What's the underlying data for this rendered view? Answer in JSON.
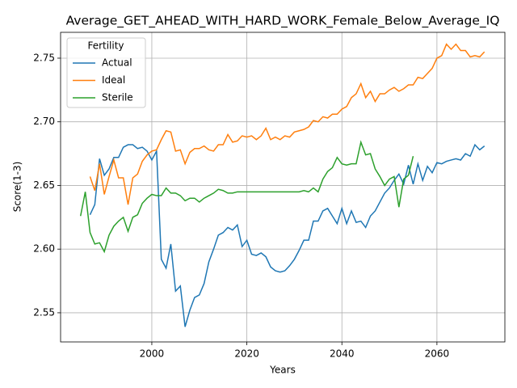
{
  "chart_data": {
    "type": "line",
    "title": "Average_GET_AHEAD_WITH_HARD_WORK_Female_Below_Average_IQ",
    "x_label": "Years",
    "y_label": "Score(1-3)",
    "x": [
      1985,
      1986,
      1987,
      1988,
      1989,
      1990,
      1991,
      1992,
      1993,
      1994,
      1995,
      1996,
      1997,
      1998,
      1999,
      2000,
      2001,
      2002,
      2003,
      2004,
      2005,
      2006,
      2007,
      2008,
      2009,
      2010,
      2011,
      2012,
      2013,
      2014,
      2015,
      2016,
      2017,
      2018,
      2019,
      2020,
      2021,
      2022,
      2023,
      2024,
      2025,
      2026,
      2027,
      2028,
      2029,
      2030,
      2031,
      2032,
      2033,
      2034,
      2035,
      2036,
      2037,
      2038,
      2039,
      2040,
      2041,
      2042,
      2043,
      2044,
      2045,
      2046,
      2047,
      2048,
      2049,
      2050,
      2051,
      2052,
      2053,
      2054,
      2055,
      2056,
      2057,
      2058,
      2059,
      2060,
      2061,
      2062,
      2063,
      2064,
      2065,
      2066,
      2067,
      2068,
      2069,
      2070
    ],
    "series": [
      {
        "name": "Actual",
        "color": "#1f77b4",
        "values": [
          null,
          null,
          2.627,
          2.635,
          2.671,
          2.658,
          2.663,
          2.672,
          2.672,
          2.68,
          2.682,
          2.682,
          2.679,
          2.68,
          2.677,
          2.67,
          2.677,
          2.592,
          2.585,
          2.604,
          2.567,
          2.571,
          2.539,
          2.552,
          2.562,
          2.564,
          2.573,
          2.59,
          2.6,
          2.611,
          2.613,
          2.617,
          2.615,
          2.619,
          2.602,
          2.607,
          2.596,
          2.595,
          2.597,
          2.594,
          2.586,
          2.583,
          2.582,
          2.583,
          2.587,
          2.592,
          2.599,
          2.607,
          2.607,
          2.622,
          2.622,
          2.63,
          2.632,
          2.626,
          2.62,
          2.632,
          2.62,
          2.63,
          2.621,
          2.622,
          2.617,
          2.626,
          2.63,
          2.637,
          2.644,
          2.648,
          2.654,
          2.659,
          2.651,
          2.666,
          2.651,
          2.667,
          2.654,
          2.665,
          2.66,
          2.668,
          2.667,
          2.669,
          2.67,
          2.671,
          2.67,
          2.675,
          2.673,
          2.682,
          2.678,
          2.681
        ]
      },
      {
        "name": "Ideal",
        "color": "#ff7f0e",
        "values": [
          null,
          null,
          2.657,
          2.646,
          2.667,
          2.643,
          2.657,
          2.67,
          2.656,
          2.656,
          2.635,
          2.656,
          2.659,
          2.669,
          2.674,
          2.677,
          2.678,
          2.686,
          2.693,
          2.692,
          2.677,
          2.678,
          2.667,
          2.676,
          2.679,
          2.679,
          2.681,
          2.678,
          2.677,
          2.682,
          2.682,
          2.69,
          2.684,
          2.685,
          2.689,
          2.688,
          2.689,
          2.686,
          2.689,
          2.695,
          2.686,
          2.688,
          2.686,
          2.689,
          2.688,
          2.692,
          2.693,
          2.694,
          2.696,
          2.701,
          2.7,
          2.704,
          2.703,
          2.706,
          2.706,
          2.71,
          2.712,
          2.719,
          2.722,
          2.73,
          2.719,
          2.724,
          2.716,
          2.722,
          2.722,
          2.725,
          2.727,
          2.724,
          2.726,
          2.729,
          2.729,
          2.735,
          2.734,
          2.738,
          2.742,
          2.75,
          2.752,
          2.761,
          2.757,
          2.761,
          2.756,
          2.756,
          2.751,
          2.752,
          2.751,
          2.755
        ]
      },
      {
        "name": "Sterile",
        "color": "#2ca02c",
        "values": [
          2.626,
          2.645,
          2.613,
          2.604,
          2.605,
          2.598,
          2.611,
          2.618,
          2.622,
          2.625,
          2.614,
          2.625,
          2.627,
          2.636,
          2.64,
          2.643,
          2.642,
          2.642,
          2.648,
          2.644,
          2.644,
          2.642,
          2.638,
          2.64,
          2.64,
          2.637,
          2.64,
          2.642,
          2.644,
          2.647,
          2.646,
          2.644,
          2.644,
          2.645,
          2.645,
          2.645,
          2.645,
          2.645,
          2.645,
          2.645,
          2.645,
          2.645,
          2.645,
          2.645,
          2.645,
          2.645,
          2.645,
          2.646,
          2.645,
          2.648,
          2.645,
          2.655,
          2.661,
          2.664,
          2.672,
          2.667,
          2.666,
          2.667,
          2.667,
          2.684,
          2.674,
          2.675,
          2.663,
          2.657,
          2.65,
          2.655,
          2.657,
          2.633,
          2.655,
          2.658,
          2.673,
          null,
          null,
          null,
          null,
          null,
          null,
          null,
          null,
          null,
          null,
          null,
          null,
          null,
          null,
          null
        ]
      }
    ],
    "xlim": [
      1980.8,
      2074.3
    ],
    "xticks": [
      2000,
      2020,
      2040,
      2060
    ],
    "ylim": [
      2.5271,
      2.7703
    ],
    "yticks": [
      2.55,
      {
        "value": 2.6,
        "label": "2.60"
      },
      2.65,
      {
        "value": 2.7,
        "label": "2.70"
      },
      2.75
    ],
    "grid": true,
    "legend_title": "Fertility",
    "legend_position": "upper left"
  }
}
